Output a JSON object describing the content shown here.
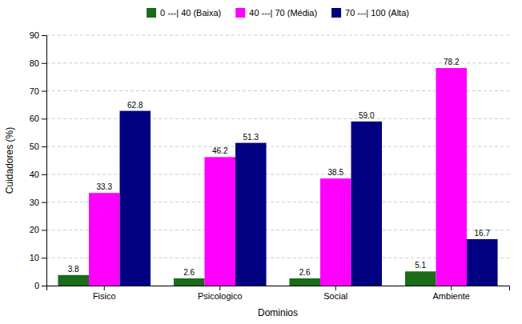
{
  "chart_data": {
    "type": "bar",
    "categories": [
      "Fisico",
      "Psicologico",
      "Social",
      "Ambiente"
    ],
    "series": [
      {
        "name": "0 ---| 40 (Baixa)",
        "color": "#1a6b1a",
        "values": [
          3.8,
          2.6,
          2.6,
          5.1
        ]
      },
      {
        "name": "40 ---| 70 (Média)",
        "color": "#FF00FF",
        "values": [
          33.3,
          46.2,
          38.5,
          78.2
        ]
      },
      {
        "name": "70 ---| 100 (Alta)",
        "color": "#000080",
        "values": [
          62.8,
          51.3,
          59.0,
          16.7
        ],
        "value_labels": [
          "62.8",
          "51.3",
          "59.0",
          "16.7"
        ]
      }
    ],
    "xlabel": "Dominios",
    "ylabel": "Cuidadores (%)",
    "ylim": [
      0,
      90
    ],
    "yticks": [
      0,
      10,
      20,
      30,
      40,
      50,
      60,
      70,
      80,
      90
    ],
    "grid": true,
    "legend": "top",
    "data_labels": true
  }
}
